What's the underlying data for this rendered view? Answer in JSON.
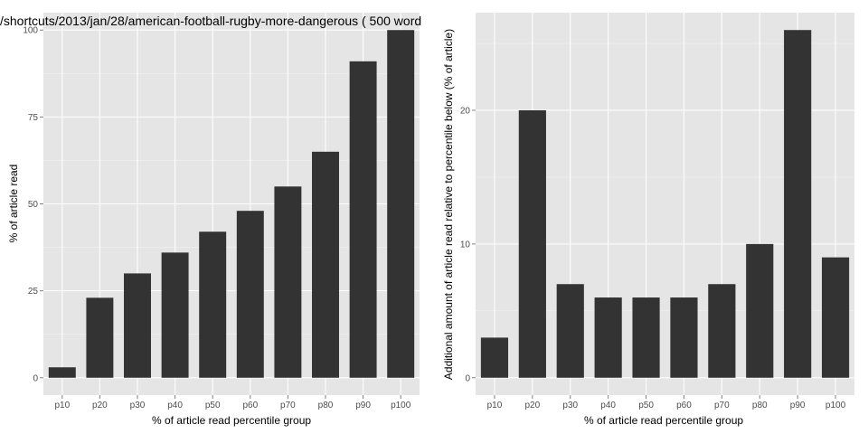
{
  "colors": {
    "panel_background": "#e5e5e5",
    "grid_major": "#ffffff",
    "grid_minor": "#f2f2f2",
    "bar_fill": "#333333",
    "tick_text": "#4d4d4d"
  },
  "chart_data": [
    {
      "type": "bar",
      "title": "/shortcuts/2013/jan/28/american-football-rugby-more-dangerous ( 500 word",
      "xlabel": "% of article read percentile group",
      "ylabel": "% of article read",
      "categories": [
        "p10",
        "p20",
        "p30",
        "p40",
        "p50",
        "p60",
        "p70",
        "p80",
        "p90",
        "p100"
      ],
      "values": [
        3,
        23,
        30,
        36,
        42,
        48,
        55,
        65,
        91,
        100
      ],
      "ylim": [
        -5,
        105
      ],
      "yticks": [
        0,
        25,
        50,
        75,
        100
      ],
      "grid": true
    },
    {
      "type": "bar",
      "title": "",
      "xlabel": "% of article read percentile group",
      "ylabel": "Additional amount of article read relative to percentile below (% of article)",
      "categories": [
        "p10",
        "p20",
        "p30",
        "p40",
        "p50",
        "p60",
        "p70",
        "p80",
        "p90",
        "p100"
      ],
      "values": [
        3,
        20,
        7,
        6,
        6,
        6,
        7,
        10,
        26,
        9
      ],
      "ylim": [
        -1.3,
        27.3
      ],
      "yticks": [
        0,
        10,
        20
      ],
      "grid": true
    }
  ]
}
